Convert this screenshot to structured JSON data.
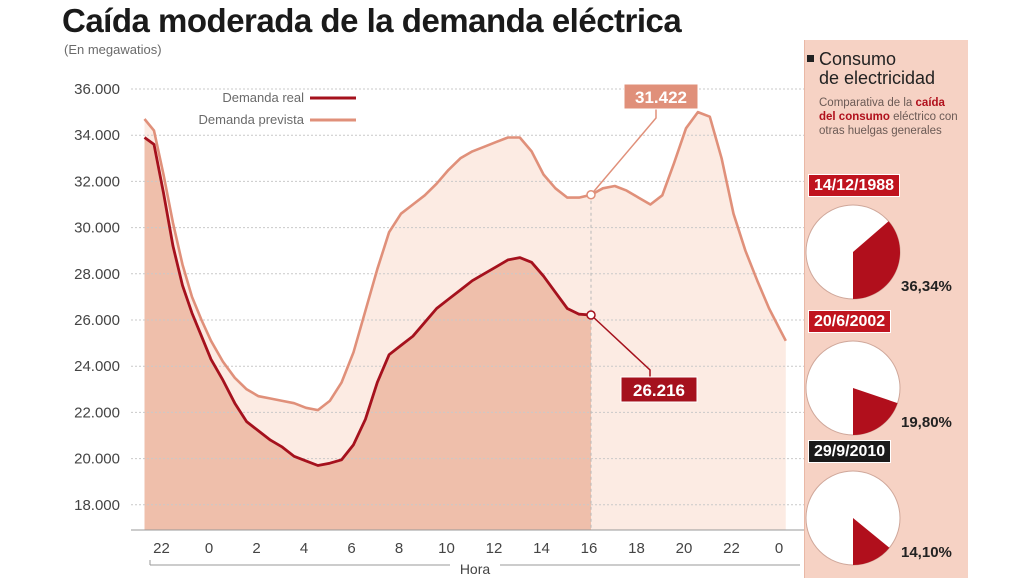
{
  "title": "Caída moderada de la demanda eléctrica",
  "subtitle": "(En megawatios)",
  "chart_data": {
    "type": "area",
    "title": "Caída moderada de la demanda eléctrica",
    "subtitle": "(En megawatios)",
    "xlabel": "Hora",
    "ylabel": "",
    "ylim": [
      17000,
      36500
    ],
    "y_ticks": [
      "36.000",
      "34.000",
      "32.000",
      "30.000",
      "28.000",
      "26.000",
      "24.000",
      "22.000",
      "20.000",
      "18.000"
    ],
    "y_tick_values": [
      36000,
      34000,
      32000,
      30000,
      28000,
      26000,
      24000,
      22000,
      20000,
      18000
    ],
    "x_ticks": [
      "22",
      "0",
      "2",
      "4",
      "6",
      "8",
      "10",
      "12",
      "14",
      "16",
      "18",
      "20",
      "22",
      "0"
    ],
    "x_range": [
      -2.8,
      24.2
    ],
    "legend": [
      {
        "name": "Demanda real",
        "color": "#a5111d"
      },
      {
        "name": "Demanda prevista",
        "color": "#e0907a"
      }
    ],
    "series": [
      {
        "name": "Demanda real",
        "x": [
          -2.8,
          -2.4,
          -2.0,
          -1.6,
          -1.2,
          -0.8,
          -0.4,
          0,
          0.5,
          1,
          1.5,
          2,
          2.5,
          3,
          3.5,
          4,
          4.5,
          5,
          5.5,
          6,
          6.5,
          7,
          7.5,
          8,
          8.5,
          9,
          9.5,
          10,
          10.5,
          11,
          11.5,
          12,
          12.5,
          13,
          13.5,
          14,
          14.5,
          15,
          15.5,
          16
        ],
        "values": [
          33900,
          33600,
          31500,
          29200,
          27500,
          26300,
          25300,
          24300,
          23400,
          22400,
          21600,
          21200,
          20800,
          20500,
          20100,
          19900,
          19700,
          19800,
          19950,
          20600,
          21700,
          23300,
          24500,
          24900,
          25300,
          25900,
          26500,
          26900,
          27300,
          27700,
          28000,
          28300,
          28600,
          28700,
          28500,
          27900,
          27200,
          26500,
          26250,
          26216
        ]
      },
      {
        "name": "Demanda prevista",
        "x": [
          -2.8,
          -2.4,
          -2.0,
          -1.6,
          -1.2,
          -0.8,
          -0.4,
          0,
          0.5,
          1,
          1.5,
          2,
          2.5,
          3,
          3.5,
          4,
          4.5,
          5,
          5.5,
          6,
          6.5,
          7,
          7.5,
          8,
          8.5,
          9,
          9.5,
          10,
          10.5,
          11,
          11.5,
          12,
          12.5,
          13,
          13.5,
          14,
          14.5,
          15,
          15.5,
          16,
          16.5,
          17,
          17.5,
          18,
          18.5,
          19,
          19.5,
          20,
          20.5,
          21,
          21.5,
          22,
          22.5,
          23,
          23.5,
          24,
          24.2
        ],
        "values": [
          34700,
          34200,
          32300,
          30200,
          28400,
          27000,
          26000,
          25100,
          24200,
          23500,
          23000,
          22700,
          22600,
          22500,
          22400,
          22200,
          22100,
          22500,
          23300,
          24600,
          26400,
          28200,
          29800,
          30600,
          31000,
          31400,
          31900,
          32500,
          33000,
          33300,
          33500,
          33700,
          33900,
          33900,
          33300,
          32300,
          31700,
          31300,
          31300,
          31422,
          31700,
          31800,
          31600,
          31300,
          31000,
          31400,
          32800,
          34300,
          35000,
          34800,
          33000,
          30600,
          29000,
          27700,
          26500,
          25500,
          25100
        ]
      }
    ],
    "annotations": [
      {
        "text": "31.422",
        "x": 16,
        "value": 31422,
        "series": "Demanda prevista"
      },
      {
        "text": "26.216",
        "x": 16,
        "value": 26216,
        "series": "Demanda real"
      }
    ],
    "comparison_pies": [
      {
        "date": "14/12/1988",
        "value_label": "36,34%",
        "value": 36.34,
        "date_color": "#c0141f"
      },
      {
        "date": "20/6/2002",
        "value_label": "19,80%",
        "value": 19.8,
        "date_color": "#c0141f"
      },
      {
        "date": "29/9/2010",
        "value_label": "14,10%",
        "value": 14.1,
        "date_color": "#1a1a1a"
      }
    ]
  },
  "sidebar": {
    "title_line1": "Consumo",
    "title_line2": "de electricidad",
    "desc_part1": "Comparativa de la",
    "desc_bold": "caída del consumo",
    "desc_part2": "eléctrico con otras huelgas generales"
  },
  "colors": {
    "real": "#a5111d",
    "prevista": "#e0907a",
    "real_fill": "#efbfab",
    "prevista_fill": "#fcebe3",
    "pie_slice": "#b10f1c"
  }
}
